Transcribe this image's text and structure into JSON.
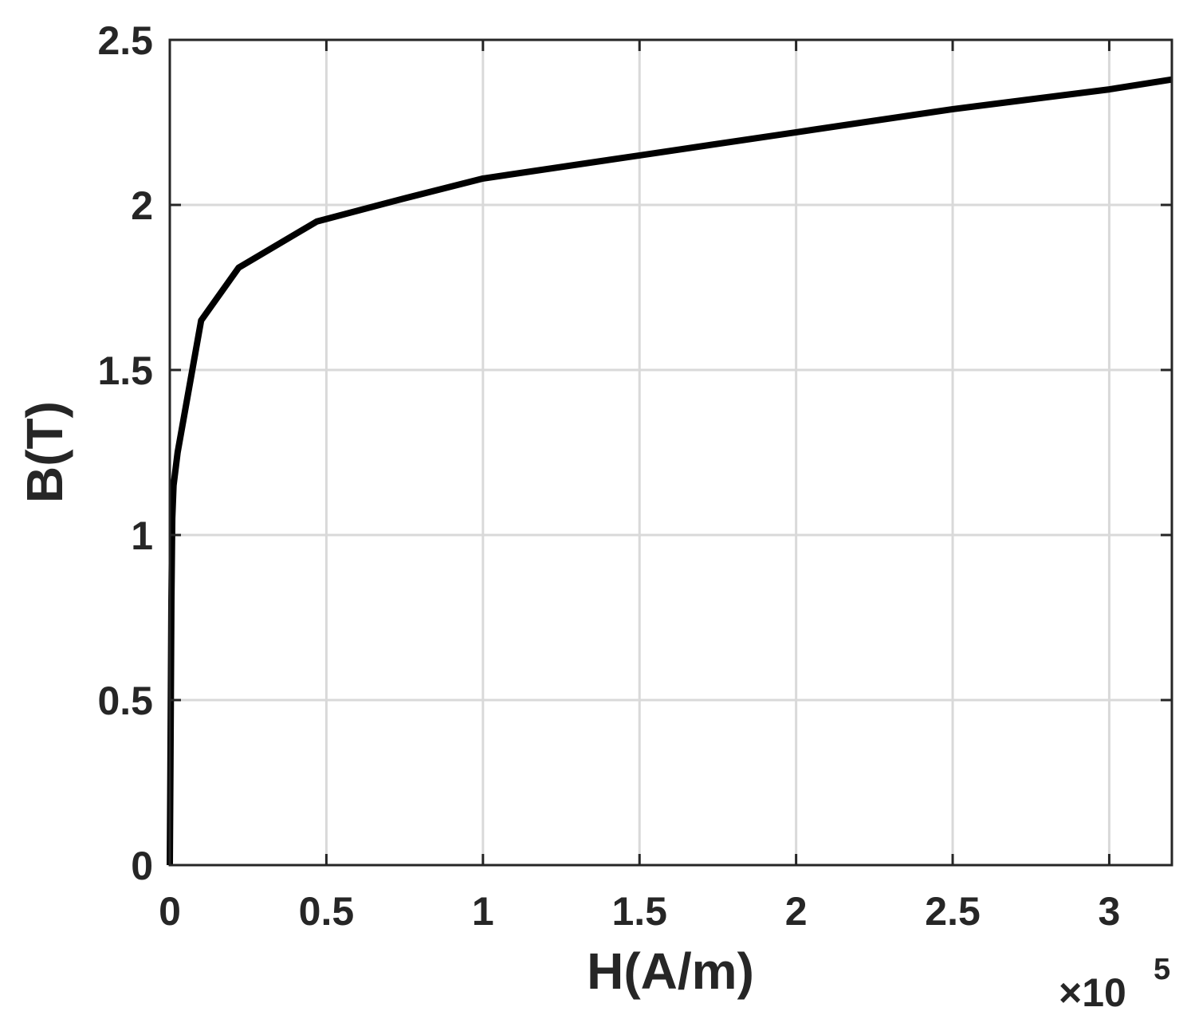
{
  "chart_data": {
    "type": "line",
    "title": "",
    "xlabel": "H(A/m)",
    "ylabel": "B(T)",
    "x_multiplier": {
      "base": "×10",
      "exponent": "5"
    },
    "xlim": [
      0,
      3.2
    ],
    "ylim": [
      0,
      2.5
    ],
    "x_ticks": [
      0,
      0.5,
      1,
      1.5,
      2,
      2.5,
      3
    ],
    "x_tick_labels": [
      "0",
      "0.5",
      "1",
      "1.5",
      "2",
      "2.5",
      "3"
    ],
    "y_ticks": [
      0,
      0.5,
      1,
      1.5,
      2,
      2.5
    ],
    "y_tick_labels": [
      "0",
      "0.5",
      "1",
      "1.5",
      "2",
      "2.5"
    ],
    "grid": true,
    "series": [
      {
        "color": "#000000",
        "x": [
          0,
          0.002,
          0.005,
          0.008,
          0.012,
          0.025,
          0.1,
          0.22,
          0.47,
          0.75,
          1.0,
          1.5,
          2.0,
          2.5,
          3.0,
          3.2
        ],
        "y": [
          0,
          0.3,
          0.8,
          1.05,
          1.15,
          1.25,
          1.65,
          1.81,
          1.95,
          2.02,
          2.08,
          2.15,
          2.22,
          2.29,
          2.35,
          2.38
        ]
      }
    ]
  }
}
